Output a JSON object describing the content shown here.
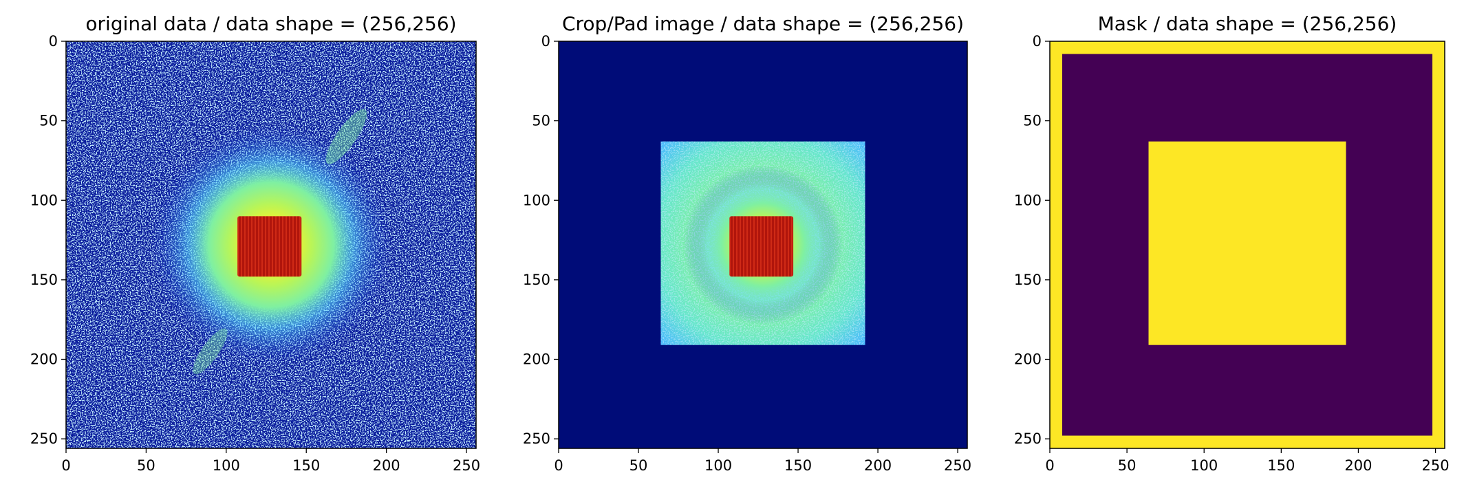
{
  "chart_data": [
    {
      "type": "heatmap",
      "title": "original data / data shape = (256,256)",
      "colormap": "jet",
      "shape": [
        256,
        256
      ],
      "xlim": [
        0,
        256
      ],
      "ylim": [
        256,
        0
      ],
      "xticks": [
        0,
        50,
        100,
        150,
        200,
        250
      ],
      "yticks": [
        0,
        50,
        100,
        150,
        200,
        250
      ],
      "features": {
        "background": "noisy blue speckle",
        "halo_center": [
          128,
          128
        ],
        "halo_radius": 75,
        "core_rect": {
          "x0": 107,
          "x1": 147,
          "y0": 110,
          "y1": 148
        },
        "core_color": "dark red"
      }
    },
    {
      "type": "heatmap",
      "title": "Crop/Pad image / data shape = (256,256)",
      "colormap": "jet",
      "shape": [
        256,
        256
      ],
      "xlim": [
        0,
        256
      ],
      "ylim": [
        256,
        0
      ],
      "xticks": [
        0,
        50,
        100,
        150,
        200,
        250
      ],
      "yticks": [
        0,
        50,
        100,
        150,
        200,
        250
      ],
      "features": {
        "background": "uniform dark blue (zero padding)",
        "crop_rect": {
          "x0": 64,
          "x1": 192,
          "y0": 63,
          "y1": 191
        },
        "core_rect": {
          "x0": 107,
          "x1": 147,
          "y0": 110,
          "y1": 148
        },
        "core_color": "dark red"
      }
    },
    {
      "type": "heatmap",
      "title": "Mask / data shape = (256,256)",
      "colormap": "viridis",
      "shape": [
        256,
        256
      ],
      "xlim": [
        0,
        256
      ],
      "ylim": [
        256,
        0
      ],
      "xticks": [
        0,
        50,
        100,
        150,
        200,
        250
      ],
      "yticks": [
        0,
        50,
        100,
        150,
        200,
        250
      ],
      "features": {
        "border_width": 8,
        "border_value": 1,
        "interior_value": 0,
        "inner_rect": {
          "x0": 64,
          "x1": 192,
          "y0": 63,
          "y1": 191
        },
        "inner_value": 1,
        "colors": {
          "low": "#440154",
          "high": "#fde725"
        }
      }
    }
  ]
}
